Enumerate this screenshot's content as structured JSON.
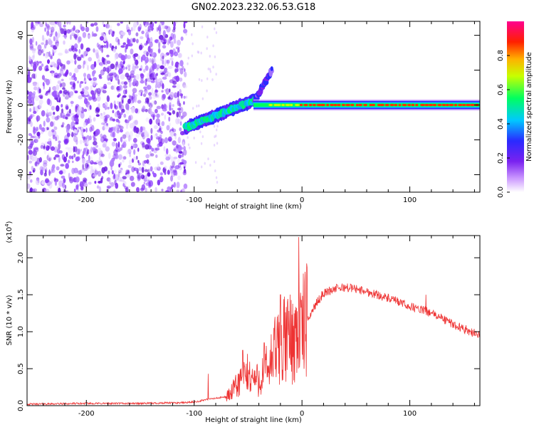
{
  "title": "GN02.2023.232.06.53.G18",
  "colors": {
    "snr_line": "#ee3333",
    "spectrum_noise": "#7a22f0",
    "background": "#ffffff"
  },
  "chart_data": [
    {
      "type": "heatmap",
      "name": "spectrogram",
      "xlabel": "Height of straight line (km)",
      "ylabel": "Frequency (Hz)",
      "xlim": [
        -255,
        165
      ],
      "ylim": [
        -50,
        48
      ],
      "xticks": [
        -200,
        -100,
        0,
        100
      ],
      "yticks": [
        -40,
        -20,
        0,
        20,
        40
      ],
      "xtick_labels": [
        "-200",
        "-100",
        "0",
        "100"
      ],
      "ytick_labels": [
        "-40",
        "-20",
        "0",
        "20",
        "40"
      ],
      "colorbar": {
        "label": "Normalized spectral amplitude",
        "range": [
          0,
          1
        ],
        "ticks": [
          0.0,
          0.2,
          0.4,
          0.6,
          0.8
        ],
        "tick_labels": [
          "0.0",
          "0.2",
          "0.4",
          "0.6",
          "0.8"
        ],
        "colormap": "rainbow (violet→blue→cyan→green→yellow→red→magenta)"
      },
      "features": {
        "noise_region_x": [
          -255,
          -108
        ],
        "ramp_start": {
          "x": -108,
          "y": -13
        },
        "ramp_end": {
          "x": -43,
          "y": 3
        },
        "branch_end": {
          "x": -28,
          "y": 20
        },
        "carrier_start_x": -45,
        "carrier_end_x": 165,
        "carrier_freq": 0
      }
    },
    {
      "type": "line",
      "name": "snr",
      "xlabel": "Height of straight line (km)",
      "ylabel": "SNR (10 * v/v)",
      "y_multiplier_label": "(x10",
      "y_multiplier_exp": "4",
      "y_multiplier_close": ")",
      "xlim": [
        -255,
        165
      ],
      "ylim": [
        0,
        2.3
      ],
      "xticks": [
        -200,
        -100,
        0,
        100
      ],
      "yticks": [
        0.0,
        0.5,
        1.0,
        1.5,
        2.0
      ],
      "xtick_labels": [
        "-200",
        "-100",
        "0",
        "100"
      ],
      "ytick_labels": [
        "0.0",
        "0.5",
        "1.0",
        "1.5",
        "2.0"
      ],
      "envelope": {
        "x": [
          -255,
          -200,
          -150,
          -110,
          -100,
          -95,
          -90,
          -80,
          -70,
          -65,
          -60,
          -55,
          -50,
          -45,
          -40,
          -35,
          -30,
          -25,
          -20,
          -15,
          -10,
          -5,
          0,
          5,
          10,
          15,
          20,
          25,
          30,
          40,
          50,
          60,
          70,
          80,
          90,
          100,
          110,
          115,
          120,
          130,
          140,
          150,
          160,
          165
        ],
        "y": [
          0.02,
          0.03,
          0.03,
          0.04,
          0.05,
          0.06,
          0.08,
          0.1,
          0.12,
          0.18,
          0.28,
          0.38,
          0.42,
          0.36,
          0.35,
          0.45,
          0.55,
          0.7,
          0.82,
          0.9,
          0.92,
          0.98,
          1.05,
          1.15,
          1.3,
          1.42,
          1.52,
          1.55,
          1.58,
          1.6,
          1.58,
          1.54,
          1.5,
          1.45,
          1.4,
          1.34,
          1.3,
          1.28,
          1.25,
          1.18,
          1.1,
          1.04,
          0.98,
          0.96
        ]
      },
      "spikes": [
        {
          "x": -87,
          "y": 0.43
        },
        {
          "x": -55,
          "y": 0.75
        },
        {
          "x": -35,
          "y": 0.85
        },
        {
          "x": -25,
          "y": 1.2
        },
        {
          "x": -20,
          "y": 1.5
        },
        {
          "x": -12,
          "y": 1.28
        },
        {
          "x": -3,
          "y": 2.28
        },
        {
          "x": 115,
          "y": 1.5
        }
      ]
    }
  ]
}
